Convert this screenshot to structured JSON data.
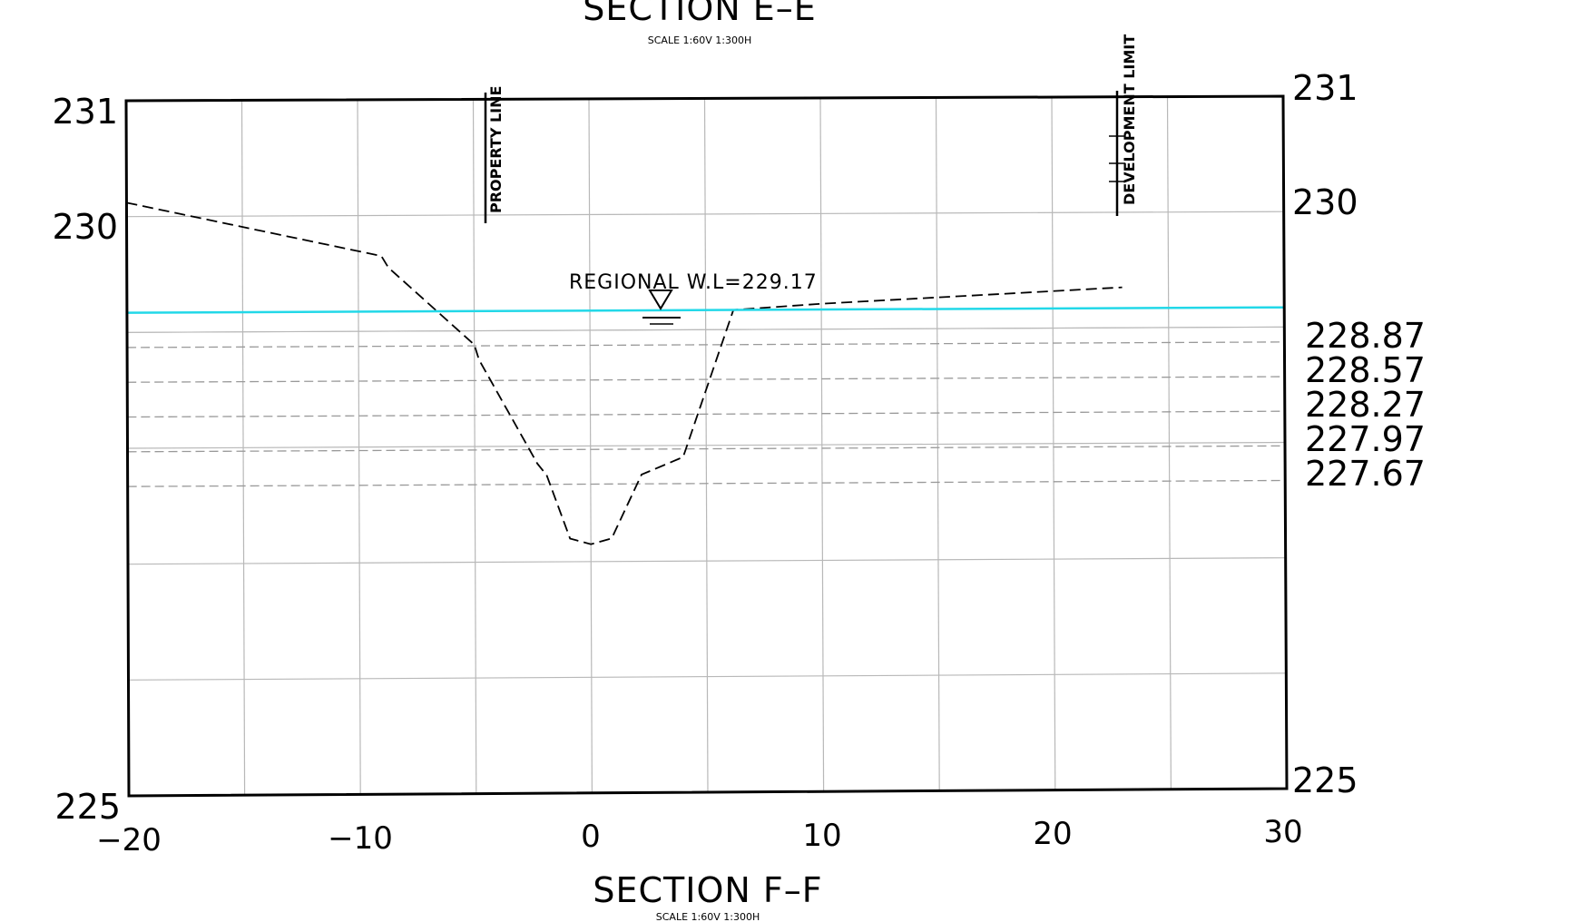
{
  "top_title": "SECTION E–E",
  "top_scale": "SCALE 1:60V 1:300H",
  "bottom_title": "SECTION F–F",
  "bottom_scale": "SCALE 1:60V 1:300H",
  "water_level_label": "REGIONAL  W.L=229.17",
  "property_line_label": "PROPERTY LINE",
  "development_limit_label": "DEVELOPMENT LIMIT",
  "left_elevation_labels": [
    "231",
    "230",
    "225"
  ],
  "right_elevation_labels": [
    "231",
    "230",
    "225"
  ],
  "contour_labels": [
    "228.87",
    "228.57",
    "228.27",
    "227.97",
    "227.67"
  ],
  "x_tick_labels": [
    "−20",
    "−10",
    "0",
    "10",
    "20",
    "30"
  ],
  "colors": {
    "water_line": "#22d8e8",
    "grid": "#b8b8b8",
    "frame": "#000000",
    "ground_profile": "#000000",
    "contour_dashed": "#999999"
  },
  "chart_data": {
    "type": "line",
    "title": "SECTION F–F",
    "x_range": [
      -20,
      30
    ],
    "y_range": [
      225,
      231
    ],
    "grid": true,
    "x_ticks": [
      -20,
      -10,
      0,
      10,
      20,
      30
    ],
    "y_ticks_labeled": [
      225,
      230,
      231
    ],
    "series": [
      {
        "name": "",
        "style": "dashed",
        "points": [
          [
            -20,
            230.12
          ],
          [
            -9,
            229.65
          ],
          [
            -8.7,
            229.55
          ],
          [
            -5,
            228.88
          ],
          [
            -4.8,
            228.75
          ],
          [
            -2.3,
            227.85
          ],
          [
            -1.9,
            227.75
          ],
          [
            -0.9,
            227.2
          ],
          [
            0,
            227.15
          ],
          [
            0.9,
            227.2
          ],
          [
            2.2,
            227.75
          ],
          [
            4,
            227.9
          ],
          [
            6.2,
            229.17
          ],
          [
            10,
            229.22
          ],
          [
            23,
            229.35
          ]
        ]
      }
    ],
    "water_level": 229.17,
    "contour_levels": [
      228.87,
      228.57,
      228.27,
      227.97,
      227.67
    ],
    "property_line_x": -4.5,
    "development_limit_x": 22.5
  }
}
